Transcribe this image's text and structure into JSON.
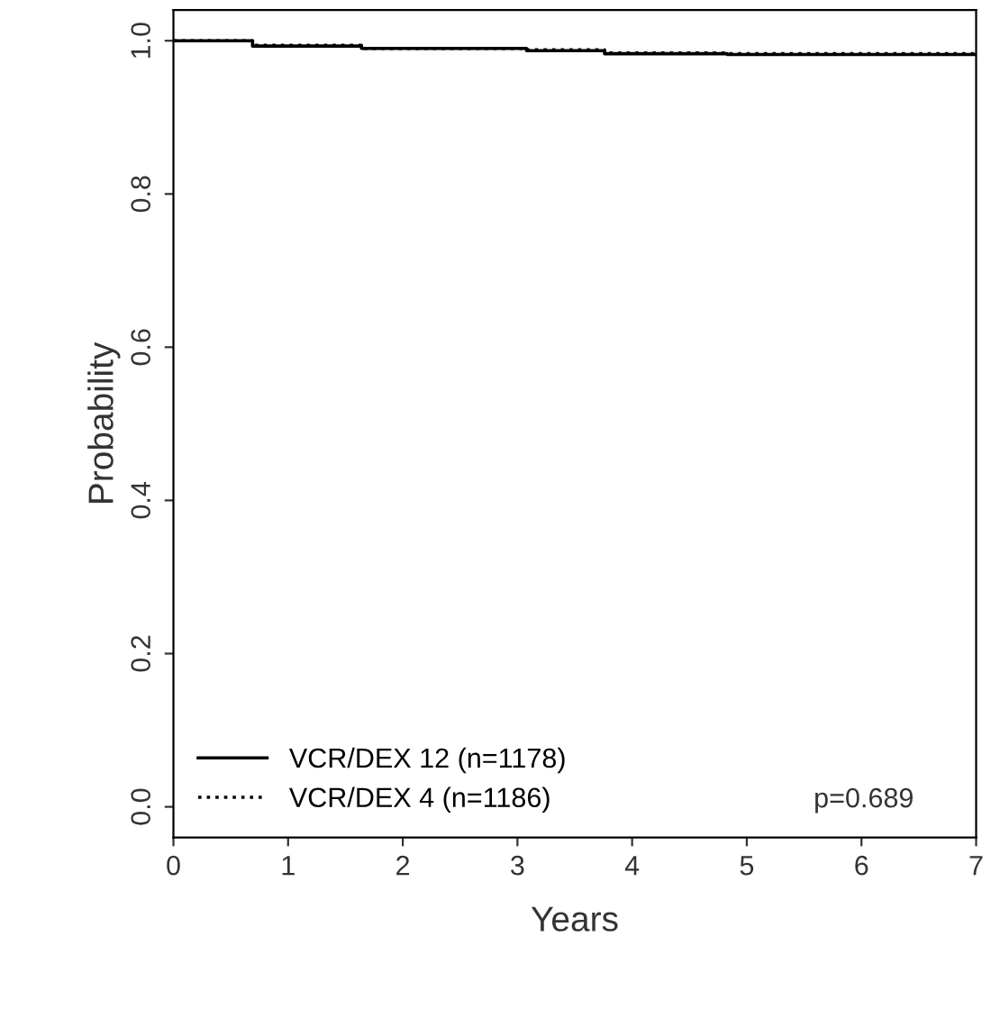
{
  "chart_data": {
    "type": "step",
    "xlabel": "Years",
    "ylabel": "Probability",
    "series": [
      {
        "name": "VCR/DEX 12 (n=1178)",
        "color": "#000000",
        "line_style": "solid",
        "x": [
          0,
          0.69,
          1.64,
          3.08,
          3.76,
          4.83,
          7
        ],
        "values": [
          1.0,
          0.993,
          0.99,
          0.987,
          0.983,
          0.982,
          0.982
        ]
      },
      {
        "name": "VCR/DEX 4 (n=1186)",
        "color": "#000000",
        "line_style": "dotted",
        "x": [
          0,
          0.69,
          1.64,
          3.08,
          3.76,
          4.83,
          7
        ],
        "values": [
          1.0,
          0.994,
          0.99,
          0.988,
          0.984,
          0.983,
          0.982
        ]
      }
    ],
    "xlim": [
      0,
      7
    ],
    "xticks": [
      0,
      1,
      2,
      3,
      4,
      5,
      6,
      7
    ],
    "ylim": [
      -0.04,
      1.04
    ],
    "yticks": [
      {
        "value": 0,
        "label": "0.0"
      },
      {
        "value": 0.2,
        "label": "0.2"
      },
      {
        "value": 0.4,
        "label": "0.4"
      },
      {
        "value": 0.6,
        "label": "0.6"
      },
      {
        "value": 0.8,
        "label": "0.8"
      },
      {
        "value": 1,
        "label": "1.0"
      }
    ],
    "legend": "bottom left",
    "grid": false,
    "annotations": [
      "p=0.689"
    ]
  }
}
